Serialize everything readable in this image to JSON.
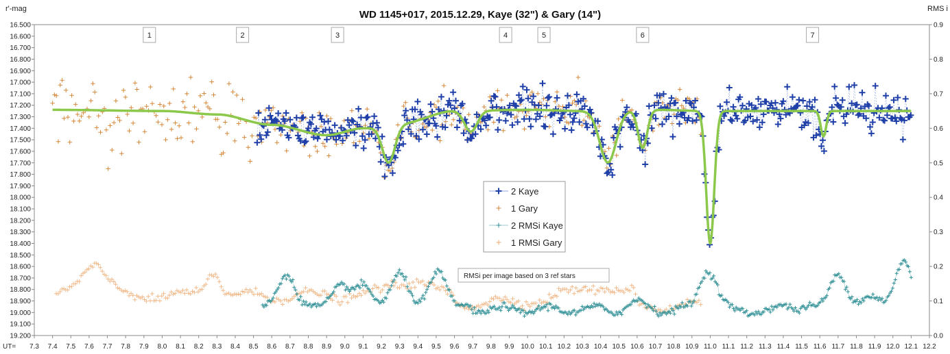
{
  "chart_data": {
    "type": "scatter",
    "title": "WD 1145+017, 2015.12.29,  Kaye (32\")  & Gary (14\")",
    "ylabel_left": "r'-mag",
    "ylabel_right": "RMS i",
    "xlabel": "UT=",
    "xlim": [
      7.3,
      12.2
    ],
    "ylim_left": [
      19.2,
      16.5
    ],
    "ylim_right": [
      0.0,
      0.9
    ],
    "x_ticks": [
      "7.3",
      "7.4",
      "7.5",
      "7.6",
      "7.7",
      "7.8",
      "7.9",
      "8.0",
      "8.1",
      "8.2",
      "8.3",
      "8.4",
      "8.5",
      "8.6",
      "8.7",
      "8.8",
      "8.9",
      "9.0",
      "9.1",
      "9.2",
      "9.3",
      "9.4",
      "9.5",
      "9.6",
      "9.7",
      "9.8",
      "9.9",
      "10.0",
      "10.1",
      "10.2",
      "10.3",
      "10.4",
      "10.5",
      "10.6",
      "10.7",
      "10.8",
      "10.9",
      "11.0",
      "11.1",
      "11.2",
      "11.3",
      "11.4",
      "11.5",
      "11.6",
      "11.7",
      "11.8",
      "11.9",
      "12.0",
      "12.1",
      "12.2"
    ],
    "y_ticks_left": [
      "16.500",
      "16.600",
      "16.700",
      "16.800",
      "16.900",
      "17.000",
      "17.100",
      "17.200",
      "17.300",
      "17.400",
      "17.500",
      "17.600",
      "17.700",
      "17.800",
      "17.900",
      "18.000",
      "18.100",
      "18.200",
      "18.300",
      "18.400",
      "18.500",
      "18.600",
      "18.700",
      "18.800",
      "18.900",
      "19.000",
      "19.100",
      "19.200"
    ],
    "y_ticks_right": [
      "0.9",
      "0.8",
      "0.7",
      "0.6",
      "0.5",
      "0.4",
      "0.3",
      "0.2",
      "0.1",
      "0.0"
    ],
    "dip_labels": [
      {
        "label": "1",
        "x": 7.93
      },
      {
        "label": "2",
        "x": 8.44
      },
      {
        "label": "3",
        "x": 8.96
      },
      {
        "label": "4",
        "x": 9.88
      },
      {
        "label": "5",
        "x": 10.09
      },
      {
        "label": "6",
        "x": 10.63
      },
      {
        "label": "7",
        "x": 11.56
      }
    ],
    "legend": [
      "2 Kaye",
      "1 Gary",
      "2 RMSi Kaye",
      "1 RMSi Gary"
    ],
    "note": "RMSi per image based on 3 ref stars",
    "colors": {
      "kaye": "#1f3fa8",
      "gary": "#d4883a",
      "rms_kaye": "#2e8f95",
      "rms_gary": "#f0b98a",
      "model": "#8cc84b"
    },
    "model_curve": {
      "baseline_points": [
        [
          7.4,
          17.24
        ],
        [
          8.0,
          17.25
        ],
        [
          8.3,
          17.28
        ],
        [
          8.6,
          17.37
        ],
        [
          8.9,
          17.46
        ],
        [
          9.1,
          17.4
        ],
        [
          9.3,
          17.36
        ],
        [
          9.6,
          17.25
        ],
        [
          10.0,
          17.24
        ],
        [
          10.3,
          17.25
        ],
        [
          10.7,
          17.24
        ],
        [
          11.0,
          17.25
        ],
        [
          12.1,
          17.25
        ]
      ],
      "dips": [
        {
          "t": 9.24,
          "depth": 0.33,
          "width": 0.035
        },
        {
          "t": 9.69,
          "depth": 0.18,
          "width": 0.035
        },
        {
          "t": 10.44,
          "depth": 0.45,
          "width": 0.045
        },
        {
          "t": 10.63,
          "depth": 0.33,
          "width": 0.025
        },
        {
          "t": 11.0,
          "depth": 1.15,
          "width": 0.022
        },
        {
          "t": 11.62,
          "depth": 0.22,
          "width": 0.015
        }
      ]
    },
    "series": [
      {
        "name": "2 Kaye",
        "x_range": [
          8.52,
          12.1
        ]
      },
      {
        "name": "1 Gary",
        "x_range": [
          7.4,
          10.95
        ]
      },
      {
        "name": "2 RMSi Kaye",
        "x_range": [
          8.55,
          12.1
        ]
      },
      {
        "name": "1 RMSi Gary",
        "x_range": [
          7.4,
          10.95
        ]
      }
    ]
  }
}
